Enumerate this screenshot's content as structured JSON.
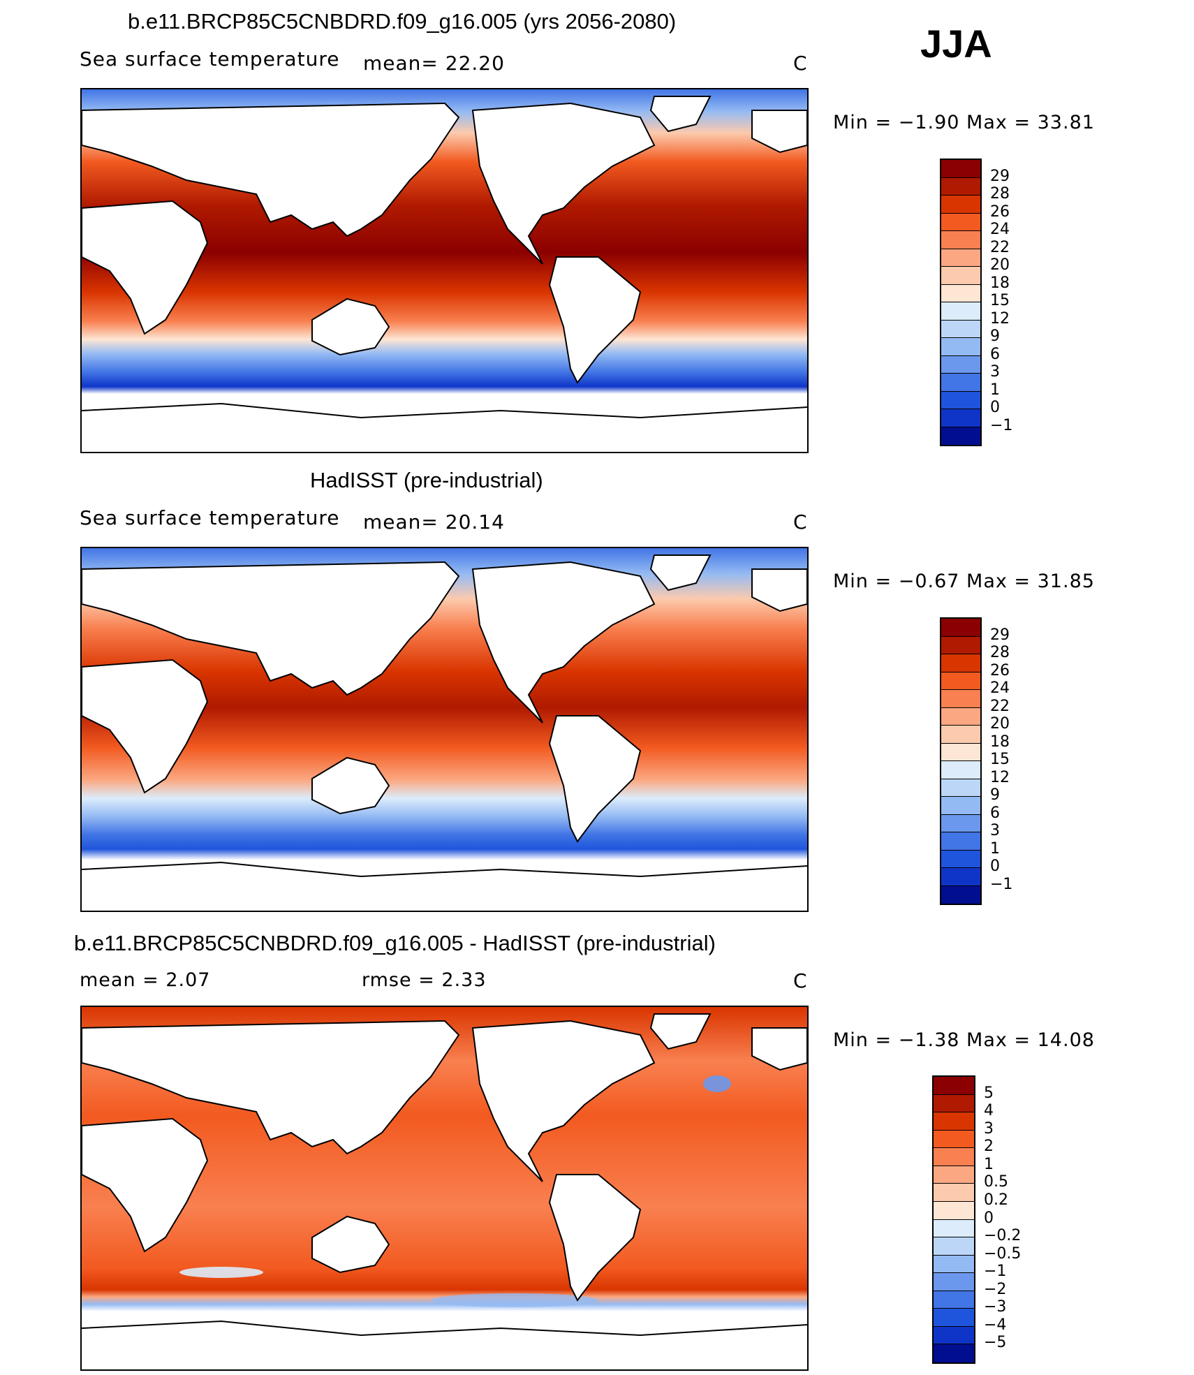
{
  "season": "JJA",
  "panels": [
    {
      "id": "model",
      "title": "b.e11.BRCP85C5CNBDRD.f09_g16.005 (yrs 2056-2080)",
      "left_label": "Sea surface temperature",
      "mid_label": "mean=   22.20",
      "right_label": "C",
      "minmax": "Min =   −1.90 Max =   33.81",
      "legend_levels": [
        "29",
        "28",
        "26",
        "24",
        "22",
        "20",
        "18",
        "15",
        "12",
        "9",
        "6",
        "3",
        "1",
        "0",
        "−1"
      ],
      "legend_colors": [
        "#8b0000",
        "#b01a00",
        "#d93500",
        "#f25a20",
        "#f98050",
        "#fba882",
        "#fccaad",
        "#fde6d4",
        "#dcecfb",
        "#bcd6f8",
        "#94baf3",
        "#6b98ec",
        "#4275e5",
        "#1f55dc",
        "#0f35c8",
        "#000e8f"
      ]
    },
    {
      "id": "obs",
      "title": "HadISST (pre-industrial)",
      "left_label": "Sea surface temperature",
      "mid_label": "mean=   20.14",
      "right_label": "C",
      "minmax": "Min =   −0.67 Max =   31.85",
      "legend_levels": [
        "29",
        "28",
        "26",
        "24",
        "22",
        "20",
        "18",
        "15",
        "12",
        "9",
        "6",
        "3",
        "1",
        "0",
        "−1"
      ],
      "legend_colors": [
        "#8b0000",
        "#b01a00",
        "#d93500",
        "#f25a20",
        "#f98050",
        "#fba882",
        "#fccaad",
        "#fde6d4",
        "#dcecfb",
        "#bcd6f8",
        "#94baf3",
        "#6b98ec",
        "#4275e5",
        "#1f55dc",
        "#0f35c8",
        "#000e8f"
      ]
    },
    {
      "id": "diff",
      "title": "b.e11.BRCP85C5CNBDRD.f09_g16.005 - HadISST (pre-industrial)",
      "left_label": "mean =    2.07",
      "mid_label": "rmse =    2.33",
      "right_label": "C",
      "minmax": "Min =   −1.38 Max =   14.08",
      "legend_levels": [
        "5",
        "4",
        "3",
        "2",
        "1",
        "0.5",
        "0.2",
        "0",
        "−0.2",
        "−0.5",
        "−1",
        "−2",
        "−3",
        "−4",
        "−5"
      ],
      "legend_colors": [
        "#8b0000",
        "#b01a00",
        "#d93500",
        "#f25a20",
        "#f98050",
        "#fba882",
        "#fccaad",
        "#fde6d4",
        "#dcecfb",
        "#bcd6f8",
        "#94baf3",
        "#6b98ec",
        "#4275e5",
        "#1f55dc",
        "#0f35c8",
        "#000e8f"
      ]
    }
  ]
}
